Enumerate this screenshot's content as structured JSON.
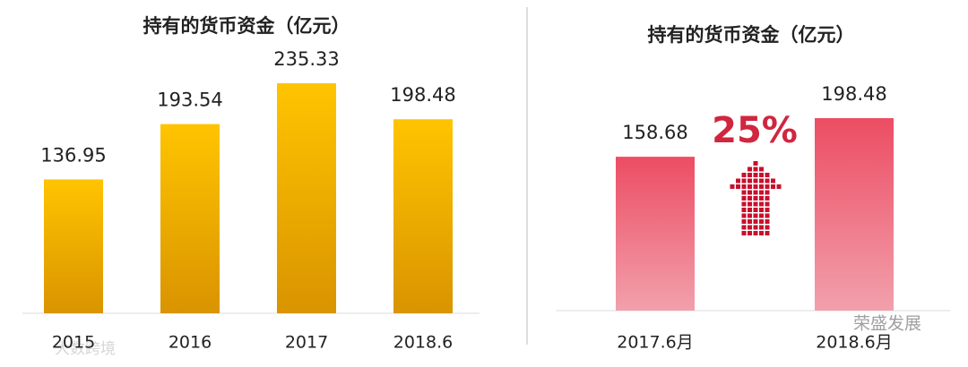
{
  "chart_data": [
    {
      "type": "bar",
      "title": "持有的货币资金（亿元）",
      "categories": [
        "2015",
        "2016",
        "2017",
        "2018.6"
      ],
      "values": [
        136.95,
        193.54,
        235.33,
        198.48
      ],
      "color": "#f2b300"
    },
    {
      "type": "bar",
      "title": "持有的货币资金（亿元）",
      "categories": [
        "2017.6月",
        "2018.6月"
      ],
      "values": [
        158.68,
        198.48
      ],
      "color": "#e8455c",
      "annotation": "25%"
    }
  ],
  "watermarks": [
    "荣盛发展",
    "大数跨境"
  ]
}
